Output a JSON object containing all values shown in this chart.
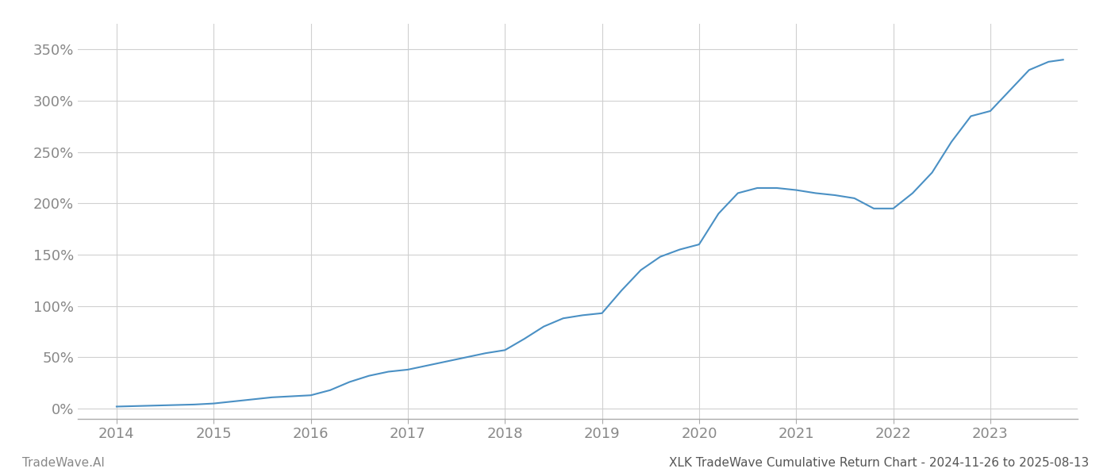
{
  "title": "XLK TradeWave Cumulative Return Chart - 2024-11-26 to 2025-08-13",
  "watermark": "TradeWave.AI",
  "line_color": "#4a90c4",
  "background_color": "#ffffff",
  "grid_color": "#d0d0d0",
  "x_years": [
    2014,
    2015,
    2016,
    2017,
    2018,
    2019,
    2020,
    2021,
    2022,
    2023
  ],
  "data_points": {
    "2014.0": 2,
    "2014.2": 2.5,
    "2014.4": 3,
    "2014.6": 3.5,
    "2014.8": 4,
    "2015.0": 5,
    "2015.2": 7,
    "2015.4": 9,
    "2015.6": 11,
    "2015.8": 12,
    "2016.0": 13,
    "2016.2": 18,
    "2016.4": 26,
    "2016.6": 32,
    "2016.8": 36,
    "2017.0": 38,
    "2017.2": 42,
    "2017.4": 46,
    "2017.6": 50,
    "2017.8": 54,
    "2018.0": 57,
    "2018.2": 68,
    "2018.4": 80,
    "2018.6": 88,
    "2018.8": 91,
    "2019.0": 93,
    "2019.2": 115,
    "2019.4": 135,
    "2019.6": 148,
    "2019.8": 155,
    "2020.0": 160,
    "2020.2": 190,
    "2020.4": 210,
    "2020.6": 215,
    "2020.8": 215,
    "2021.0": 213,
    "2021.2": 210,
    "2021.4": 208,
    "2021.6": 205,
    "2021.8": 195,
    "2022.0": 195,
    "2022.2": 210,
    "2022.4": 230,
    "2022.6": 260,
    "2022.8": 285,
    "2023.0": 290,
    "2023.2": 310,
    "2023.4": 330,
    "2023.6": 338,
    "2023.75": 340
  },
  "ylim": [
    -10,
    375
  ],
  "yticks": [
    0,
    50,
    100,
    150,
    200,
    250,
    300,
    350
  ],
  "line_width": 1.5,
  "tick_label_color": "#888888",
  "title_color": "#555555",
  "watermark_color": "#888888",
  "title_fontsize": 11,
  "watermark_fontsize": 11,
  "tick_fontsize": 13
}
